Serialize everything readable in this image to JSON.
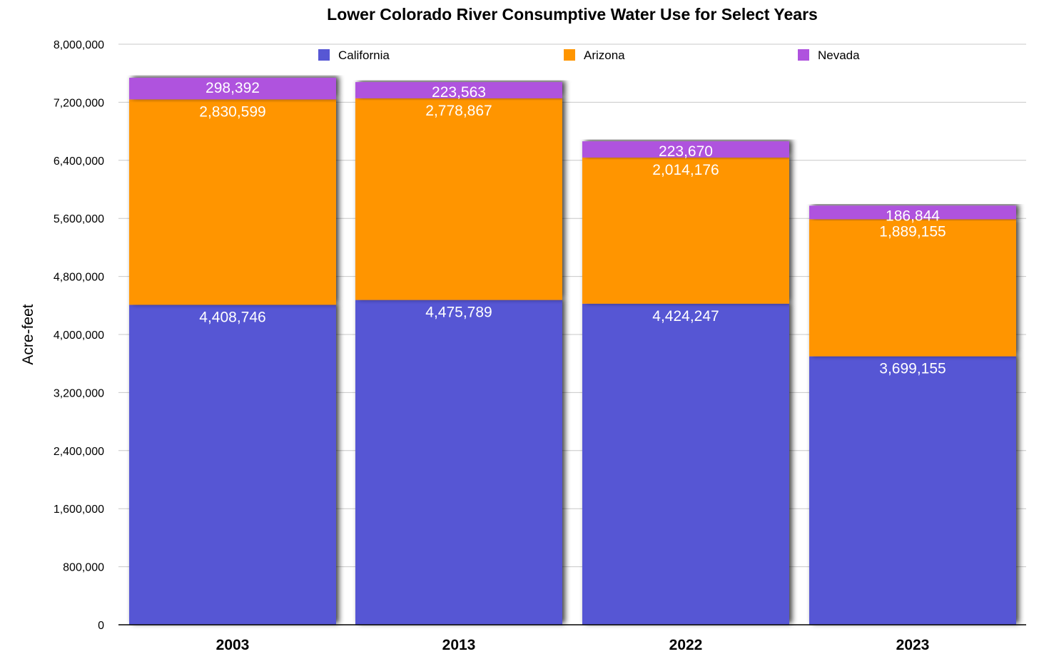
{
  "chart_data": {
    "type": "bar",
    "stacked": true,
    "title": "Lower Colorado River Consumptive Water Use for Select Years",
    "xlabel": "",
    "ylabel": "Acre-feet",
    "categories": [
      "2003",
      "2013",
      "2022",
      "2023"
    ],
    "ylim": [
      0,
      8000000
    ],
    "yticks": [
      0,
      800000,
      1600000,
      2400000,
      3200000,
      4000000,
      4800000,
      5600000,
      6400000,
      7200000,
      8000000
    ],
    "ytick_labels": [
      "0",
      "800,000",
      "1,600,000",
      "2,400,000",
      "3,200,000",
      "4,000,000",
      "4,800,000",
      "5,600,000",
      "6,400,000",
      "7,200,000",
      "8,000,000"
    ],
    "grid": true,
    "legend_position": "top",
    "series": [
      {
        "name": "California",
        "color": "#5757D4",
        "values": [
          4408746,
          4475789,
          4424247,
          3699155
        ],
        "labels": [
          "4,408,746",
          "4,475,789",
          "4,424,247",
          "3,699,155"
        ]
      },
      {
        "name": "Arizona",
        "color": "#FF9500",
        "values": [
          2830599,
          2778867,
          2014176,
          1889155
        ],
        "labels": [
          "2,830,599",
          "2,778,867",
          "2,014,176",
          "1,889,155"
        ]
      },
      {
        "name": "Nevada",
        "color": "#AF52DE",
        "values": [
          298392,
          223563,
          223670,
          186844
        ],
        "labels": [
          "298,392",
          "223,563",
          "223,670",
          "186,844"
        ]
      }
    ]
  }
}
